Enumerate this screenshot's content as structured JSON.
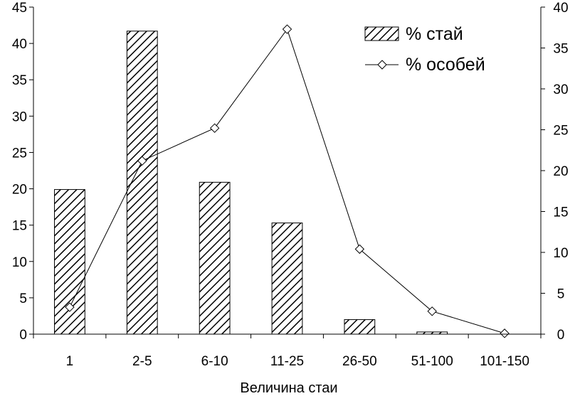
{
  "chart_data": {
    "type": "bar",
    "title": "",
    "xlabel": "Величина стаи",
    "ylabel": "",
    "y2label": "",
    "categories": [
      "1",
      "2-5",
      "6-10",
      "11-25",
      "26-50",
      "51-100",
      "101-150"
    ],
    "ylim": [
      0,
      45
    ],
    "y_ticks": [
      "0",
      "5",
      "10",
      "15",
      "20",
      "25",
      "30",
      "35",
      "40",
      "45"
    ],
    "y2lim": [
      0,
      40
    ],
    "y2_ticks": [
      "0",
      "5",
      "10",
      "15",
      "20",
      "25",
      "30",
      "35",
      "40"
    ],
    "grid": false,
    "legend_position": "top-right",
    "series": [
      {
        "name": "% стай",
        "type": "bar",
        "axis": "left",
        "pattern": "diagonal-hatch",
        "values": [
          19.9,
          41.7,
          20.9,
          15.3,
          2.0,
          0.3,
          0.0
        ]
      },
      {
        "name": "% особей",
        "type": "line",
        "axis": "right",
        "marker": "diamond",
        "values": [
          3.3,
          21.2,
          25.2,
          37.3,
          10.4,
          2.8,
          0.1
        ]
      }
    ]
  }
}
